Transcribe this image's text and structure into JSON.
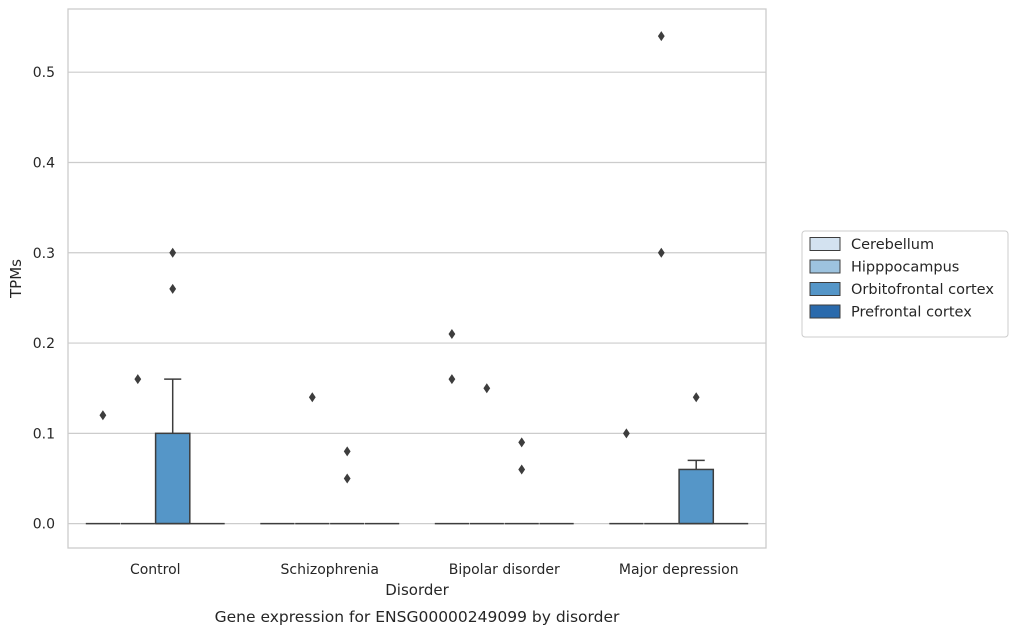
{
  "chart_data": {
    "type": "box",
    "xlabel": "Disorder",
    "ylabel": "TPMs",
    "caption": "Gene expression for ENSG00000249099 by disorder",
    "ylim": [
      -0.027,
      0.57
    ],
    "yticks": [
      0.0,
      0.1,
      0.2,
      0.3,
      0.4,
      0.5
    ],
    "ytick_labels": [
      "0.0",
      "0.1",
      "0.2",
      "0.3",
      "0.4",
      "0.5"
    ],
    "grid": "horizontal",
    "legend_position": "right",
    "categories": [
      "Control",
      "Schizophrenia",
      "Bipolar disorder",
      "Major depression"
    ],
    "series": [
      {
        "name": "Cerebellum",
        "color": "#d3e2f0",
        "boxes": [
          {
            "q1": 0.0,
            "median": 0.0,
            "q3": 0.0,
            "whislo": 0.0,
            "whishi": 0.0,
            "fliers": [
              0.12
            ]
          },
          {
            "q1": 0.0,
            "median": 0.0,
            "q3": 0.0,
            "whislo": 0.0,
            "whishi": 0.0,
            "fliers": []
          },
          {
            "q1": 0.0,
            "median": 0.0,
            "q3": 0.0,
            "whislo": 0.0,
            "whishi": 0.0,
            "fliers": [
              0.21,
              0.16
            ]
          },
          {
            "q1": 0.0,
            "median": 0.0,
            "q3": 0.0,
            "whislo": 0.0,
            "whishi": 0.0,
            "fliers": [
              0.1
            ]
          }
        ]
      },
      {
        "name": "Hipppocampus",
        "color": "#9dc3df",
        "boxes": [
          {
            "q1": 0.0,
            "median": 0.0,
            "q3": 0.0,
            "whislo": 0.0,
            "whishi": 0.0,
            "fliers": [
              0.16
            ]
          },
          {
            "q1": 0.0,
            "median": 0.0,
            "q3": 0.0,
            "whislo": 0.0,
            "whishi": 0.0,
            "fliers": [
              0.14
            ]
          },
          {
            "q1": 0.0,
            "median": 0.0,
            "q3": 0.0,
            "whislo": 0.0,
            "whishi": 0.0,
            "fliers": [
              0.15
            ]
          },
          {
            "q1": 0.0,
            "median": 0.0,
            "q3": 0.0,
            "whislo": 0.0,
            "whishi": 0.0,
            "fliers": [
              0.54,
              0.3
            ]
          }
        ]
      },
      {
        "name": "Orbitofrontal cortex",
        "color": "#5596c8",
        "boxes": [
          {
            "q1": 0.0,
            "median": 0.0,
            "q3": 0.1,
            "whislo": 0.0,
            "whishi": 0.16,
            "fliers": [
              0.3,
              0.26
            ]
          },
          {
            "q1": 0.0,
            "median": 0.0,
            "q3": 0.0,
            "whislo": 0.0,
            "whishi": 0.0,
            "fliers": [
              0.08,
              0.05
            ]
          },
          {
            "q1": 0.0,
            "median": 0.0,
            "q3": 0.0,
            "whislo": 0.0,
            "whishi": 0.0,
            "fliers": [
              0.09,
              0.06
            ]
          },
          {
            "q1": 0.0,
            "median": 0.0,
            "q3": 0.06,
            "whislo": 0.0,
            "whishi": 0.07,
            "fliers": [
              0.14
            ]
          }
        ]
      },
      {
        "name": "Prefrontal cortex",
        "color": "#2a6aac",
        "boxes": [
          {
            "q1": 0.0,
            "median": 0.0,
            "q3": 0.0,
            "whislo": 0.0,
            "whishi": 0.0,
            "fliers": []
          },
          {
            "q1": 0.0,
            "median": 0.0,
            "q3": 0.0,
            "whislo": 0.0,
            "whishi": 0.0,
            "fliers": []
          },
          {
            "q1": 0.0,
            "median": 0.0,
            "q3": 0.0,
            "whislo": 0.0,
            "whishi": 0.0,
            "fliers": []
          },
          {
            "q1": 0.0,
            "median": 0.0,
            "q3": 0.0,
            "whislo": 0.0,
            "whishi": 0.0,
            "fliers": []
          }
        ]
      }
    ]
  }
}
